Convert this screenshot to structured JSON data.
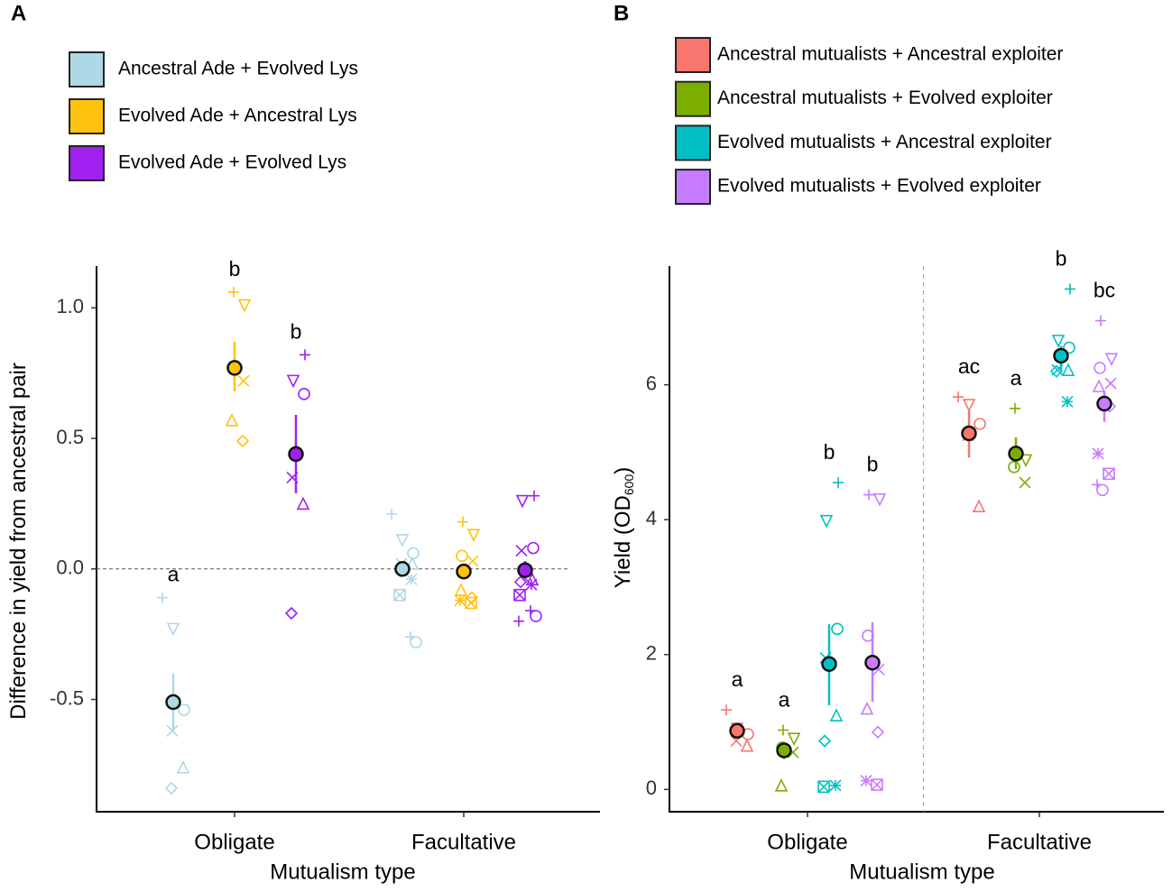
{
  "chart_data": [
    {
      "type": "dotplot",
      "panel_label": "A",
      "categories": [
        "Obligate",
        "Facultative"
      ],
      "xlabel": "Mutualism type",
      "ylabel": "Difference in yield from ancestral pair",
      "ylim": [
        -0.93,
        1.16
      ],
      "yticks": [
        -0.5,
        {
          "value": 0,
          "label": "0.0"
        },
        0.5,
        {
          "value": 1,
          "label": "1.0"
        }
      ],
      "zero_line": true,
      "series": [
        {
          "name": "Ancestral Ade + Evolved Lys",
          "color": "#add8e6",
          "means": [
            -0.51,
            0.0
          ],
          "errors": [
            [
              -0.62,
              -0.4
            ],
            [
              -0.03,
              0.03
            ]
          ],
          "letters": [
            "a"
          ],
          "points": [
            [
              -0.11,
              -0.23,
              -0.54,
              -0.62,
              -0.76,
              -0.84
            ],
            [
              0.21,
              0.11,
              0.06,
              0.02,
              0.02,
              -0.01,
              -0.04,
              -0.1,
              -0.26
            ]
          ]
        },
        {
          "name": "Evolved Ade + Ancestral Lys",
          "color": "#ffc20e",
          "means": [
            0.77,
            -0.01
          ],
          "errors": [
            [
              0.68,
              0.87
            ],
            [
              -0.04,
              0.02
            ]
          ],
          "letters": [
            "b"
          ],
          "points": [
            [
              1.06,
              1.01,
              0.77,
              0.72,
              0.57,
              0.49
            ],
            [
              0.18,
              0.13,
              0.05,
              0.03,
              -0.08,
              -0.11,
              -0.12,
              -0.13
            ]
          ]
        },
        {
          "name": "Evolved Ade + Evolved Lys",
          "color": "#a020f0",
          "means": [
            0.44,
            -0.005
          ],
          "errors": [
            [
              0.29,
              0.59
            ],
            [
              -0.04,
              0.03
            ]
          ],
          "letters": [
            "b"
          ],
          "points": [
            [
              0.82,
              0.72,
              0.67,
              0.35,
              0.25,
              -0.17
            ],
            [
              0.28,
              0.26,
              0.08,
              0.07,
              -0.04,
              -0.05,
              -0.06,
              -0.1,
              -0.16,
              -0.2
            ]
          ]
        }
      ]
    },
    {
      "type": "dotplot",
      "panel_label": "B",
      "categories": [
        "Obligate",
        "Facultative"
      ],
      "xlabel": "Mutualism type",
      "ylabel": "Yield (OD",
      "ylabel_sub": "600",
      "ylabel_end": ")",
      "ylim": [
        -0.33,
        7.76
      ],
      "yticks": [
        0,
        2,
        4,
        6
      ],
      "divider": true,
      "series": [
        {
          "name": "Ancestral mutualists + Ancestral exploiter",
          "color": "#f8766d",
          "means": [
            0.87,
            5.28
          ],
          "errors": [
            [
              0.82,
              0.92
            ],
            [
              4.92,
              5.62
            ]
          ],
          "letters": [
            "a",
            "ac"
          ],
          "points": [
            [
              1.18,
              0.9,
              0.82,
              0.72,
              0.65
            ],
            [
              5.82,
              5.7,
              5.42,
              5.25,
              4.2
            ]
          ]
        },
        {
          "name": "Ancestral mutualists + Evolved exploiter",
          "color": "#7cae00",
          "means": [
            0.58,
            4.98
          ],
          "errors": [
            [
              0.45,
              0.7
            ],
            [
              4.75,
              5.22
            ]
          ],
          "letters": [
            "a",
            "a"
          ],
          "points": [
            [
              0.88,
              0.75,
              0.62,
              0.55,
              0.06
            ],
            [
              5.65,
              4.88,
              4.78,
              4.55
            ]
          ]
        },
        {
          "name": "Evolved mutualists + Ancestral exploiter",
          "color": "#00bfc4",
          "means": [
            1.86,
            6.43
          ],
          "errors": [
            [
              1.25,
              2.45
            ],
            [
              6.2,
              6.58
            ]
          ],
          "letters": [
            "b",
            "b"
          ],
          "points": [
            [
              4.55,
              3.98,
              2.38,
              1.95,
              1.1,
              0.72,
              0.06,
              0.04
            ],
            [
              7.42,
              6.65,
              6.55,
              6.22,
              6.22,
              6.2,
              5.75
            ]
          ]
        },
        {
          "name": "Evolved mutualists + Evolved exploiter",
          "color": "#c77cff",
          "means": [
            1.88,
            5.72
          ],
          "errors": [
            [
              1.3,
              2.48
            ],
            [
              5.45,
              5.9
            ]
          ],
          "letters": [
            "b",
            "bc"
          ],
          "points": [
            [
              4.37,
              4.3,
              2.28,
              1.78,
              1.2,
              0.85,
              0.13,
              0.07
            ],
            [
              6.95,
              6.38,
              6.25,
              6.02,
              5.98,
              5.68,
              4.98,
              4.68,
              4.52
            ]
          ]
        }
      ]
    }
  ]
}
